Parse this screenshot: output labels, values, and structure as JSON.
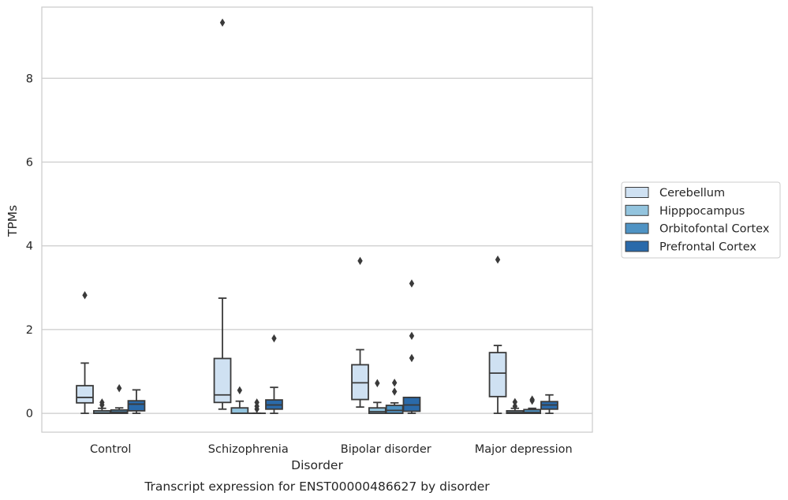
{
  "chart_data": {
    "type": "box",
    "title": "Transcript expression for ENST00000486627 by disorder",
    "xlabel": "Disorder",
    "ylabel": "TPMs",
    "categories": [
      "Control",
      "Schizophrenia",
      "Bipolar disorder",
      "Major depression"
    ],
    "ylim": [
      -0.45,
      9.7
    ],
    "yticks": [
      0,
      2,
      4,
      6,
      8
    ],
    "grid": "horizontal",
    "legend_position": "right",
    "series": [
      {
        "name": "Cerebellum",
        "color": "#cfe1f2",
        "boxes": [
          {
            "min": 0.0,
            "q1": 0.25,
            "median": 0.38,
            "q3": 0.66,
            "max": 1.2,
            "outliers": [
              2.82
            ]
          },
          {
            "min": 0.1,
            "q1": 0.26,
            "median": 0.44,
            "q3": 1.31,
            "max": 2.75,
            "outliers": [
              9.33
            ]
          },
          {
            "min": 0.15,
            "q1": 0.33,
            "median": 0.73,
            "q3": 1.16,
            "max": 1.52,
            "outliers": [
              3.64
            ]
          },
          {
            "min": 0.0,
            "q1": 0.4,
            "median": 0.96,
            "q3": 1.45,
            "max": 1.62,
            "outliers": [
              3.67
            ]
          }
        ]
      },
      {
        "name": "Hipppocampus",
        "color": "#93c4de",
        "boxes": [
          {
            "min": 0.0,
            "q1": 0.0,
            "median": 0.01,
            "q3": 0.06,
            "max": 0.12,
            "outliers": [
              0.2,
              0.26
            ]
          },
          {
            "min": 0.0,
            "q1": 0.0,
            "median": 0.0,
            "q3": 0.13,
            "max": 0.29,
            "outliers": [
              0.55
            ]
          },
          {
            "min": 0.0,
            "q1": 0.0,
            "median": 0.04,
            "q3": 0.13,
            "max": 0.26,
            "outliers": [
              0.72
            ]
          },
          {
            "min": 0.0,
            "q1": 0.0,
            "median": 0.02,
            "q3": 0.06,
            "max": 0.12,
            "outliers": [
              0.17,
              0.27
            ]
          }
        ]
      },
      {
        "name": "Orbitofontal Cortex",
        "color": "#4f93c4",
        "boxes": [
          {
            "min": 0.0,
            "q1": 0.0,
            "median": 0.03,
            "q3": 0.08,
            "max": 0.13,
            "outliers": [
              0.6
            ]
          },
          {
            "min": 0.0,
            "q1": 0.0,
            "median": 0.0,
            "q3": 0.0,
            "max": 0.0,
            "outliers": [
              0.1,
              0.17,
              0.26
            ]
          },
          {
            "min": 0.0,
            "q1": 0.0,
            "median": 0.07,
            "q3": 0.19,
            "max": 0.25,
            "outliers": [
              0.52,
              0.73
            ]
          },
          {
            "min": 0.0,
            "q1": 0.0,
            "median": 0.02,
            "q3": 0.09,
            "max": 0.12,
            "outliers": [
              0.3,
              0.33
            ]
          }
        ]
      },
      {
        "name": "Prefrontal Cortex",
        "color": "#2a6aaa",
        "boxes": [
          {
            "min": 0.0,
            "q1": 0.06,
            "median": 0.22,
            "q3": 0.3,
            "max": 0.56,
            "outliers": []
          },
          {
            "min": 0.0,
            "q1": 0.1,
            "median": 0.2,
            "q3": 0.32,
            "max": 0.62,
            "outliers": [
              1.79
            ]
          },
          {
            "min": 0.0,
            "q1": 0.05,
            "median": 0.2,
            "q3": 0.38,
            "max": 0.38,
            "outliers": [
              1.32,
              1.85,
              3.1
            ]
          },
          {
            "min": 0.0,
            "q1": 0.1,
            "median": 0.2,
            "q3": 0.28,
            "max": 0.44,
            "outliers": []
          }
        ]
      }
    ]
  }
}
